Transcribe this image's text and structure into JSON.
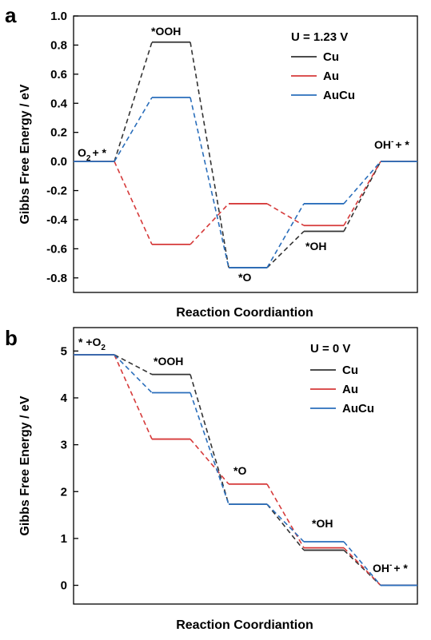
{
  "chart_data": [
    {
      "type": "line",
      "panel_label": "a",
      "condition": "U = 1.23 V",
      "xlabel": "Reaction Coordiantion",
      "ylabel": "Gibbs Free Energy / eV",
      "ylim": [
        -0.9,
        1.0
      ],
      "yticks": [
        "1.0",
        "0.8",
        "0.6",
        "0.4",
        "0.2",
        "0.0",
        "-0.2",
        "-0.4",
        "-0.6",
        "-0.8"
      ],
      "steps": [
        "O2 + *",
        "*OOH",
        "*O",
        "*OH",
        "OH- + *"
      ],
      "step_labels": [
        {
          "text": "O",
          "sub": "2",
          "tail": "+ *"
        },
        {
          "text": "*OOH",
          "sub": "",
          "tail": ""
        },
        {
          "text": "*O",
          "sub": "",
          "tail": ""
        },
        {
          "text": "*OH",
          "sub": "",
          "tail": ""
        },
        {
          "text": "OH",
          "sup": "-",
          "tail": "+ *"
        }
      ],
      "series": [
        {
          "name": "Cu",
          "color": "#333333",
          "values": [
            0.0,
            0.82,
            -0.73,
            -0.48,
            0.0
          ]
        },
        {
          "name": "Au",
          "color": "#d63a3a",
          "values": [
            0.0,
            -0.57,
            -0.29,
            -0.44,
            0.0
          ]
        },
        {
          "name": "AuCu",
          "color": "#2a6ebb",
          "values": [
            0.0,
            0.44,
            -0.73,
            -0.29,
            0.0
          ]
        }
      ],
      "legend": "top-right"
    },
    {
      "type": "line",
      "panel_label": "b",
      "condition": "U = 0 V",
      "xlabel": "Reaction Coordiantion",
      "ylabel": "Gibbs Free Energy / eV",
      "ylim": [
        -0.4,
        5.5
      ],
      "yticks": [
        "5",
        "4",
        "3",
        "2",
        "1",
        "0"
      ],
      "steps": [
        "* + O2",
        "*OOH",
        "*O",
        "*OH",
        "OH- + *"
      ],
      "step_labels": [
        {
          "text": "* +O",
          "sub": "2",
          "tail": ""
        },
        {
          "text": "*OOH",
          "sub": "",
          "tail": ""
        },
        {
          "text": "*O",
          "sub": "",
          "tail": ""
        },
        {
          "text": "*OH",
          "sub": "",
          "tail": ""
        },
        {
          "text": "OH",
          "sup": "-",
          "tail": "+ *"
        }
      ],
      "series": [
        {
          "name": "Cu",
          "color": "#333333",
          "values": [
            4.92,
            4.5,
            1.73,
            0.75,
            0.0
          ]
        },
        {
          "name": "Au",
          "color": "#d63a3a",
          "values": [
            4.92,
            3.12,
            2.16,
            0.8,
            0.0
          ]
        },
        {
          "name": "AuCu",
          "color": "#2a6ebb",
          "values": [
            4.92,
            4.11,
            1.73,
            0.93,
            0.0
          ]
        }
      ],
      "legend": "top-right"
    }
  ]
}
